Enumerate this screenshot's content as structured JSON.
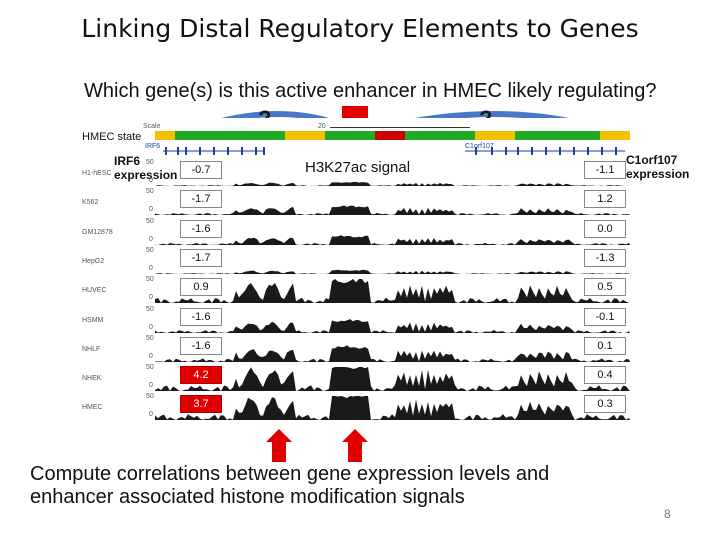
{
  "slide": {
    "title": "Linking Distal Regulatory Elements to Genes",
    "question": "Which gene(s) is this active enhancer in HMEC likely regulating?",
    "question_marks": [
      "?",
      "?"
    ],
    "hmec_state_label": "HMEC state",
    "signal_label": "H3K27ac signal",
    "left_gene_label_line1": "IRF6",
    "left_gene_label_line2": "expression",
    "right_gene_label_line1": "C1orf107",
    "right_gene_label_line2": "expression",
    "footer_line1": "Compute correlations between gene expression levels and",
    "footer_line2": "enhancer associated histone modification signals",
    "page_number": "8"
  },
  "browser": {
    "scale_label": "Scale",
    "scale_value": "20",
    "gene_left": "IRF6",
    "gene_right": "C1orf107",
    "tracks": [
      {
        "name": "H1-hESC",
        "axis_top": "50",
        "axis_bottom": "0",
        "left": "-0.7",
        "right": "-1.1",
        "left_red": false
      },
      {
        "name": "K562",
        "axis_top": "50",
        "axis_bottom": "0",
        "left": "-1.7",
        "right": "1.2",
        "left_red": false
      },
      {
        "name": "GM12878",
        "axis_top": "50",
        "axis_bottom": "0",
        "left": "-1.6",
        "right": "0.0",
        "left_red": false
      },
      {
        "name": "HepG2",
        "axis_top": "50",
        "axis_bottom": "0",
        "left": "-1.7",
        "right": "-1.3",
        "left_red": false
      },
      {
        "name": "HUVEC",
        "axis_top": "50",
        "axis_bottom": "0",
        "left": "0.9",
        "right": "0.5",
        "left_red": false
      },
      {
        "name": "HSMM",
        "axis_top": "50",
        "axis_bottom": "0",
        "left": "-1.6",
        "right": "-0.1",
        "left_red": false
      },
      {
        "name": "NHLF",
        "axis_top": "50",
        "axis_bottom": "0",
        "left": "-1.6",
        "right": "0.1",
        "left_red": false
      },
      {
        "name": "NHEK",
        "axis_top": "50",
        "axis_bottom": "0",
        "left": "4.2",
        "right": "0.4",
        "left_red": true
      },
      {
        "name": "HMEC",
        "axis_top": "50",
        "axis_bottom": "0",
        "left": "3.7",
        "right": "0.3",
        "left_red": true
      }
    ]
  },
  "colors": {
    "state_bar": [
      "#f2c200",
      "#22aa22",
      "#f2c200",
      "#22aa22",
      "#cc0000",
      "#22aa22",
      "#f2c200",
      "#22aa22",
      "#f2c200"
    ],
    "arrow_blue": "#4a78c9",
    "arrow_red": "#e00000",
    "highlight_red": "#e00000"
  }
}
